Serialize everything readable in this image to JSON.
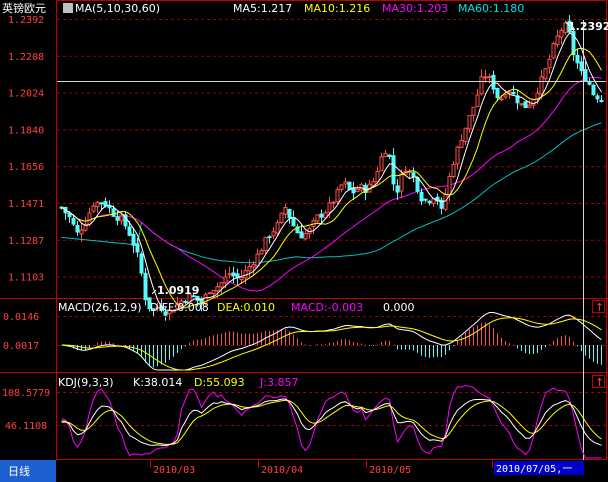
{
  "header": {
    "instrument": "英镑欧元",
    "ma_indicator": "MA(5,10,30,60)",
    "ma5": "MA5:1.217",
    "ma10": "MA10:1.216",
    "ma30": "MA30:1.203",
    "ma60": "MA60:1.180"
  },
  "price_axis": [
    "1.2392",
    "1.2208",
    "1.2024",
    "1.1840",
    "1.1656",
    "1.1471",
    "1.1287",
    "1.1103"
  ],
  "annotations": {
    "high": "1.2392",
    "low": "1.0919"
  },
  "macd": {
    "title": "MACD(26,12,9)",
    "diff": "DIFF:0.008",
    "dea": "DEA:0.010",
    "macd": "MACD:-0.003",
    "extra": "0.000",
    "axis": [
      "0.0146",
      "0.0017"
    ]
  },
  "kdj": {
    "title": "KDJ(9,3,3)",
    "k": "K:38.014",
    "d": "D:55.093",
    "j": "J:3.857",
    "axis": [
      "108.5779",
      "46.1108"
    ]
  },
  "footer": {
    "period_tab": "日线",
    "dates": [
      "2010/03",
      "2010/04",
      "2010/05",
      "201"
    ],
    "cursor_date": "2010/07/05,一"
  },
  "buttons": {
    "scroll_up": "↑"
  },
  "colors": {
    "up": "#ff5050",
    "down": "#54fcfc",
    "ma5": "#ffffff",
    "ma10": "#ffff00",
    "ma30": "#ff00ff",
    "ma60": "#00c0c0",
    "grid": "#a00000",
    "axis": "#c00000",
    "cursor_bg": "#0000c8"
  },
  "chart_data": {
    "type": "candlestick",
    "ylim": [
      1.0919,
      1.2392
    ],
    "y_ticks": [
      1.2392,
      1.2208,
      1.2024,
      1.184,
      1.1656,
      1.1471,
      1.1287,
      1.1103
    ],
    "x_labels": [
      "2010/03",
      "2010/04",
      "2010/05"
    ],
    "high": 1.2392,
    "low": 1.0919,
    "series": [
      {
        "name": "MA5",
        "last": 1.217
      },
      {
        "name": "MA10",
        "last": 1.216
      },
      {
        "name": "MA30",
        "last": 1.203
      },
      {
        "name": "MA60",
        "last": 1.18
      }
    ],
    "macd": {
      "diff": 0.008,
      "dea": 0.01,
      "macd": -0.003
    },
    "kdj": {
      "k": 38.014,
      "d": 55.093,
      "j": 3.857
    }
  }
}
